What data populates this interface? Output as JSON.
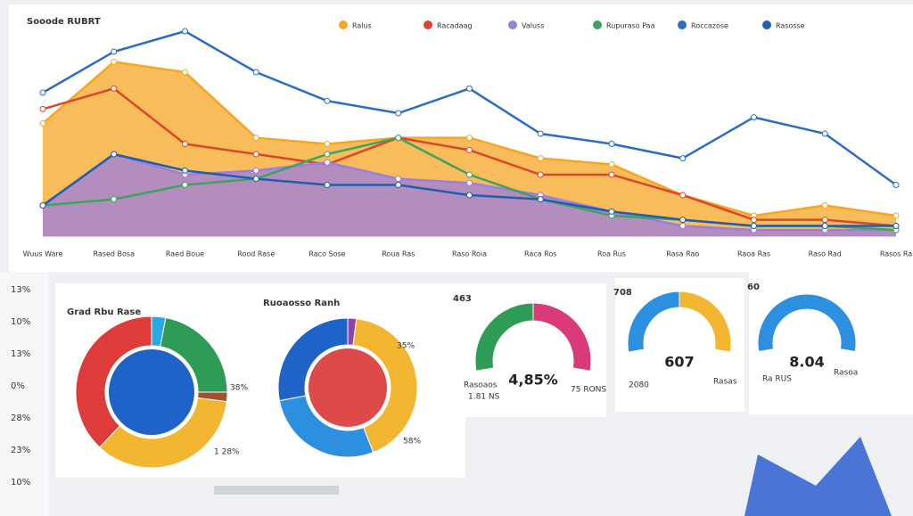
{
  "header": {
    "title": "Sooode RUBRT"
  },
  "sidebar": {
    "labels": [
      "13%",
      "10%",
      "13%",
      "0%",
      "28%",
      "23%",
      "10%"
    ]
  },
  "chart_data": [
    {
      "type": "area",
      "legend": "top",
      "categories": [
        "Wuus Ware",
        "Rased Bosa",
        "Raed Boue",
        "Rood Rase",
        "Raco Sose",
        "Roua Ras",
        "Raso Roia",
        "Raca Ros",
        "Roa Rus",
        "Rasa Rao",
        "Raoa Ras",
        "Raso Rad",
        "Rasos Ra"
      ],
      "ylim": [
        0,
        100
      ],
      "series": [
        {
          "name": "Ralus",
          "color": "#f5a623",
          "fill": true,
          "values": [
            55,
            85,
            80,
            48,
            45,
            48,
            48,
            38,
            35,
            20,
            10,
            15,
            10
          ]
        },
        {
          "name": "Racadaag",
          "color": "#d9482b",
          "fill": false,
          "values": [
            62,
            72,
            45,
            40,
            35,
            48,
            42,
            30,
            30,
            20,
            8,
            8,
            5
          ]
        },
        {
          "name": "Valuss",
          "color": "#9b7ee0",
          "fill": true,
          "values": [
            15,
            40,
            30,
            32,
            36,
            28,
            26,
            20,
            12,
            5,
            3,
            3,
            3
          ]
        },
        {
          "name": "Rupuraso Paa",
          "color": "#3fa35f",
          "fill": false,
          "values": [
            15,
            18,
            25,
            28,
            40,
            48,
            30,
            18,
            10,
            8,
            5,
            5,
            3
          ]
        },
        {
          "name": "Roccazose",
          "color": "#2b6cc4",
          "fill": false,
          "values": [
            70,
            90,
            100,
            80,
            66,
            60,
            72,
            50,
            45,
            38,
            58,
            50,
            25
          ]
        },
        {
          "name": "Rasosse",
          "color": "#1f5fb0",
          "fill": false,
          "values": [
            15,
            40,
            32,
            28,
            25,
            25,
            20,
            18,
            12,
            8,
            5,
            5,
            5
          ]
        }
      ]
    },
    {
      "type": "pie",
      "title": "Grad Rbu Rase",
      "values": [
        3,
        22,
        2,
        35,
        38
      ],
      "colors": [
        "#29a9e0",
        "#2e9b57",
        "#a0522d",
        "#f2b631",
        "#de3b3b"
      ],
      "center_color": "#1f63c9",
      "annotations": [
        "38%",
        "1 28%"
      ]
    },
    {
      "type": "pie",
      "title": "Ruoaosso Ranh",
      "values": [
        2,
        42,
        28,
        28
      ],
      "colors": [
        "#8e44ad",
        "#f2b631",
        "#2d8fe0",
        "#1f63c9"
      ],
      "center_color": "#de4a4a",
      "annotations": [
        "35%",
        "58%"
      ]
    },
    {
      "type": "gauge",
      "title": "463",
      "center": "4,85%",
      "values": [
        50,
        50
      ],
      "colors": [
        "#2e9b57",
        "#d93a78"
      ],
      "annotations": [
        "Rasoaos",
        "1.81 NS",
        "75 RONS"
      ]
    },
    {
      "type": "gauge",
      "title": "708",
      "center": "607",
      "values": [
        50,
        50
      ],
      "colors": [
        "#2d8fe0",
        "#f2b631"
      ],
      "annotations": [
        "2080",
        "Rasas"
      ]
    },
    {
      "type": "gauge",
      "title": "60",
      "center": "8.04",
      "values": [
        100
      ],
      "colors": [
        "#2d8fe0"
      ],
      "annotations": [
        "Ra RUS",
        "Rasoa"
      ]
    }
  ]
}
